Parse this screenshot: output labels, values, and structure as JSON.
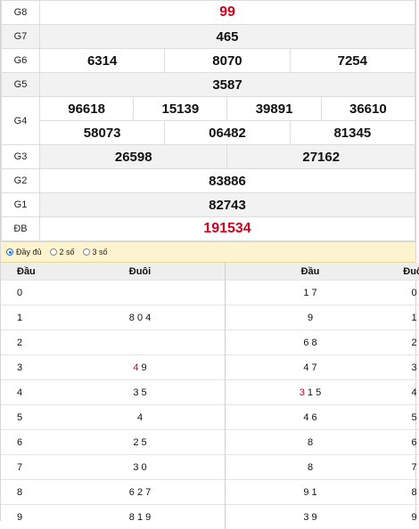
{
  "prizes": [
    {
      "label": "G8",
      "values": [
        "99"
      ],
      "red": true
    },
    {
      "label": "G7",
      "values": [
        "465"
      ]
    },
    {
      "label": "G6",
      "values": [
        "6314",
        "8070",
        "7254"
      ]
    },
    {
      "label": "G5",
      "values": [
        "3587"
      ]
    },
    {
      "label": "G4",
      "row1": [
        "96618",
        "15139",
        "39891",
        "36610"
      ],
      "row2": [
        "58073",
        "06482",
        "81345"
      ]
    },
    {
      "label": "G3",
      "values": [
        "26598",
        "27162"
      ]
    },
    {
      "label": "G2",
      "values": [
        "83886"
      ]
    },
    {
      "label": "G1",
      "values": [
        "82743"
      ]
    },
    {
      "label": "ĐB",
      "values": [
        "191534"
      ],
      "red": true
    }
  ],
  "filter": {
    "options": [
      "Đầy đủ",
      "2 số",
      "3 số"
    ],
    "selected": "Đầy đủ"
  },
  "loto": {
    "headers": [
      "Đầu",
      "Đuôi",
      "Đầu",
      "Đuôi"
    ],
    "rows": [
      {
        "dau": "0",
        "duoi": "",
        "dau2": "1 7",
        "duoi2": "0"
      },
      {
        "dau": "1",
        "duoi": "8 0 4",
        "dau2": "9",
        "duoi2": "1"
      },
      {
        "dau": "2",
        "duoi": "",
        "dau2": "6 8",
        "duoi2": "2"
      },
      {
        "dau": "3",
        "duoi_hl": "4",
        "duoi": " 9",
        "dau2": "4 7",
        "duoi2": "3"
      },
      {
        "dau": "4",
        "duoi": "3 5",
        "dau2_hl": "3",
        "dau2": " 1 5",
        "duoi2": "4"
      },
      {
        "dau": "5",
        "duoi": "4",
        "dau2": "4 6",
        "duoi2": "5"
      },
      {
        "dau": "6",
        "duoi": "2 5",
        "dau2": "8",
        "duoi2": "6"
      },
      {
        "dau": "7",
        "duoi": "3 0",
        "dau2": "8",
        "duoi2": "7"
      },
      {
        "dau": "8",
        "duoi": "6 2 7",
        "dau2": "9 1",
        "duoi2": "8"
      },
      {
        "dau": "9",
        "duoi": "8 1 9",
        "dau2": "3 9",
        "duoi2": "9"
      }
    ],
    "highlight_color": "#d0021b"
  }
}
